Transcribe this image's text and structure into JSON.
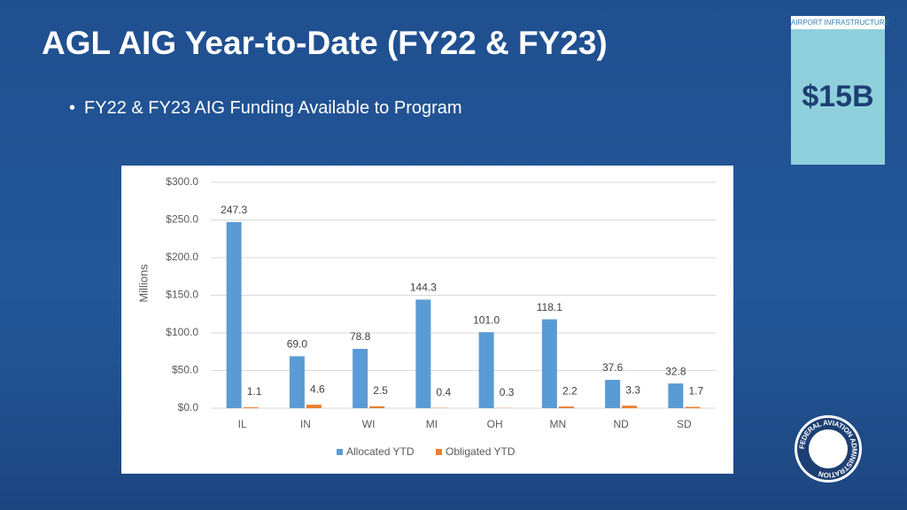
{
  "slide_title": "AGL AIG Year-to-Date (FY22 & FY23)",
  "bullet": "FY22 & FY23 AIG Funding Available to Program",
  "badge": {
    "header": "AIRPORT INFRASTRUCTURE",
    "amount": "$15B"
  },
  "logo_text": "FEDERAL AVIATION ADMINISTRATION",
  "chart_data": {
    "type": "bar",
    "y_label": "Millions",
    "categories": [
      "IL",
      "IN",
      "WI",
      "MI",
      "OH",
      "MN",
      "ND",
      "SD"
    ],
    "series": [
      {
        "name": "Allocated YTD",
        "color": "#5b9bd5",
        "values": [
          247.3,
          69.0,
          78.8,
          144.3,
          101.0,
          118.1,
          37.6,
          32.8
        ],
        "value_labels": [
          "247.3",
          "69.0",
          "78.8",
          "144.3",
          "101.0",
          "118.1",
          "37.6",
          "32.8"
        ]
      },
      {
        "name": "Obligated YTD",
        "color": "#ed7d31",
        "values": [
          1.1,
          4.6,
          2.5,
          0.4,
          0.3,
          2.2,
          3.3,
          1.7
        ],
        "value_labels": [
          "1.1",
          "4.6",
          "2.5",
          "0.4",
          "0.3",
          "2.2",
          "3.3",
          "1.7"
        ]
      }
    ],
    "ylim": [
      0,
      300
    ],
    "yticks": [
      {
        "value": 0,
        "label": "$0.0"
      },
      {
        "value": 50,
        "label": "$50.0"
      },
      {
        "value": 100,
        "label": "$100.0"
      },
      {
        "value": 150,
        "label": "$150.0"
      },
      {
        "value": 200,
        "label": "$200.0"
      },
      {
        "value": 250,
        "label": "$250.0"
      },
      {
        "value": 300,
        "label": "$300.0"
      }
    ],
    "grid": true,
    "legend": "bottom"
  }
}
